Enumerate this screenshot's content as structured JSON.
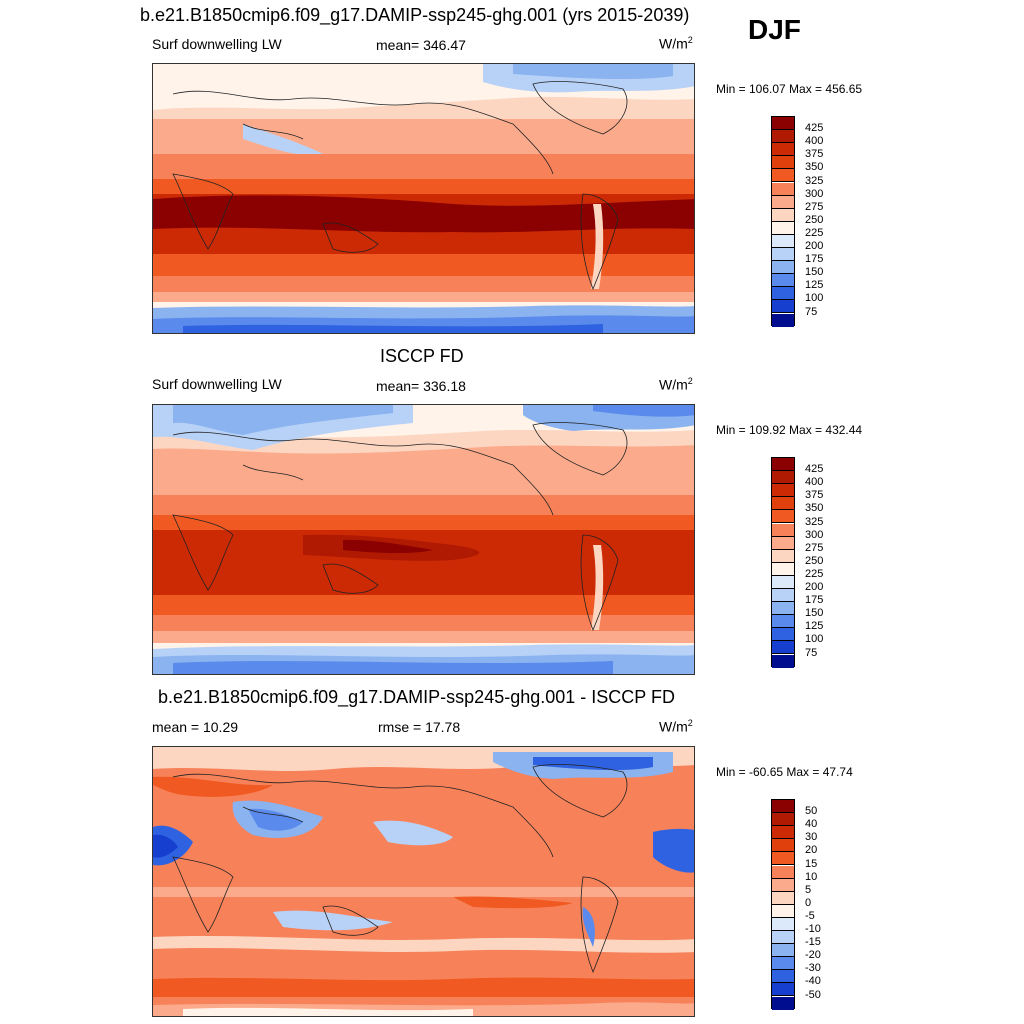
{
  "season": "DJF",
  "panels": [
    {
      "id": "model",
      "title": "b.e21.B1850cmip6.f09_g17.DAMIP-ssp245-ghg.001 (yrs 2015-2039)",
      "left_label": "Surf downwelling LW",
      "center_label": "mean= 346.47",
      "units": "W/m",
      "units_sup": "2",
      "minmax": "Min = 106.07 Max = 456.65",
      "colorbar_ticks": [
        "425",
        "400",
        "375",
        "350",
        "325",
        "300",
        "275",
        "250",
        "225",
        "200",
        "175",
        "150",
        "125",
        "100",
        "75"
      ],
      "colorbar_colors": [
        "#8b0000",
        "#b01a02",
        "#cc2a05",
        "#e0400c",
        "#f05a22",
        "#f7825a",
        "#fbab8c",
        "#fdd6c2",
        "#fff3ea",
        "#dbe9fb",
        "#b8d2f7",
        "#8ab3f0",
        "#5a8bec",
        "#2f62e0",
        "#163fd0",
        "#000d8f"
      ],
      "map_palette": {
        "deep": "#8b0000",
        "dark": "#b01a02",
        "red": "#cc2a05",
        "orange": "#f05a22",
        "salmon": "#f7825a",
        "peach": "#fbab8c",
        "pale": "#fdd6c2",
        "cream": "#fff3ea",
        "lightblue": "#dbe9fb",
        "blue": "#8ab3f0",
        "midblue": "#5a8bec",
        "darkblue": "#2f62e0",
        "navy": "#163fd0"
      }
    },
    {
      "id": "obs",
      "title": "ISCCP FD",
      "left_label": "Surf downwelling LW",
      "center_label": "mean= 336.18",
      "units": "W/m",
      "units_sup": "2",
      "minmax": "Min = 109.92 Max = 432.44",
      "colorbar_ticks": [
        "425",
        "400",
        "375",
        "350",
        "325",
        "300",
        "275",
        "250",
        "225",
        "200",
        "175",
        "150",
        "125",
        "100",
        "75"
      ],
      "colorbar_colors": [
        "#8b0000",
        "#b01a02",
        "#cc2a05",
        "#e0400c",
        "#f05a22",
        "#f7825a",
        "#fbab8c",
        "#fdd6c2",
        "#fff3ea",
        "#dbe9fb",
        "#b8d2f7",
        "#8ab3f0",
        "#5a8bec",
        "#2f62e0",
        "#163fd0",
        "#000d8f"
      ]
    },
    {
      "id": "diff",
      "title": "b.e21.B1850cmip6.f09_g17.DAMIP-ssp245-ghg.001 - ISCCP FD",
      "left_label": "mean =  10.29",
      "center_label": "rmse =  17.78",
      "units": "W/m",
      "units_sup": "2",
      "minmax": "Min = -60.65 Max =  47.74",
      "colorbar_ticks": [
        "50",
        "40",
        "30",
        "20",
        "15",
        "10",
        "5",
        "0",
        "-5",
        "-10",
        "-15",
        "-20",
        "-30",
        "-40",
        "-50"
      ],
      "colorbar_colors": [
        "#8b0000",
        "#b01a02",
        "#cc2a05",
        "#e0400c",
        "#f05a22",
        "#f7825a",
        "#fbab8c",
        "#fdd6c2",
        "#fff3ea",
        "#dbe9fb",
        "#b8d2f7",
        "#8ab3f0",
        "#5a8bec",
        "#2f62e0",
        "#163fd0",
        "#000d8f"
      ]
    }
  ]
}
